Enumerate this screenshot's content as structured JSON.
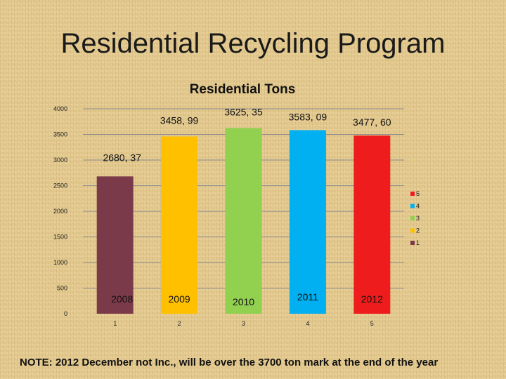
{
  "slide": {
    "title": "Residential Recycling Program",
    "note": "NOTE: 2012 December not Inc., will be over the 3700 ton mark at the end of the year"
  },
  "chart_data": {
    "type": "bar",
    "title": "Residential Tons",
    "categories": [
      "1",
      "2",
      "3",
      "4",
      "5"
    ],
    "values": [
      2680.37,
      3458.99,
      3625.35,
      3583.09,
      3477.6
    ],
    "data_labels": [
      "2680, 37",
      "3458, 99",
      "3625, 35",
      "3583, 09",
      "3477, 60"
    ],
    "year_labels": [
      "2008",
      "2009",
      "2010",
      "2011",
      "2012"
    ],
    "colors": [
      "#7b3a4a",
      "#ffc000",
      "#92d050",
      "#00b0f0",
      "#ee1c1c"
    ],
    "y_ticks": [
      0,
      500,
      1000,
      1500,
      2000,
      2500,
      3000,
      3500,
      4000
    ],
    "ylim": [
      0,
      4000
    ],
    "grid": true,
    "legend": {
      "position": "right",
      "entries": [
        "5",
        "4",
        "3",
        "2",
        "1"
      ]
    }
  }
}
